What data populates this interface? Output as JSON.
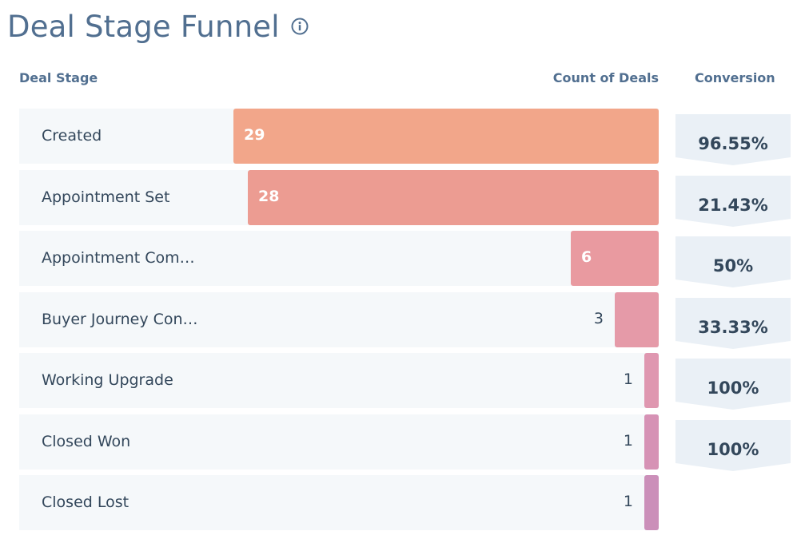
{
  "header": {
    "title": "Deal Stage Funnel",
    "info_icon": "info-icon"
  },
  "columns": {
    "stage": "Deal Stage",
    "count": "Count of Deals",
    "conversion": "Conversion"
  },
  "colors": {
    "row_bg": "#f5f8fa",
    "text": "#33475b",
    "muted": "#516f90",
    "conversion_bg": "#eaf0f6"
  },
  "chart_data": {
    "type": "bar",
    "title": "Deal Stage Funnel",
    "xlabel": "Count of Deals",
    "ylabel": "Deal Stage",
    "categories": [
      "Created",
      "Appointment Set",
      "Appointment Com…",
      "Buyer Journey Con…",
      "Working Upgrade",
      "Closed Won",
      "Closed Lost"
    ],
    "values": [
      29,
      28,
      6,
      3,
      1,
      1,
      1
    ],
    "bar_colors": [
      "#f2a68a",
      "#ec9c92",
      "#e99aa0",
      "#e59aa8",
      "#df97b0",
      "#d692b5",
      "#cb8fb9"
    ],
    "conversion": [
      "96.55%",
      "21.43%",
      "50%",
      "33.33%",
      "100%",
      "100%"
    ],
    "orientation": "horizontal",
    "legend": "none"
  }
}
